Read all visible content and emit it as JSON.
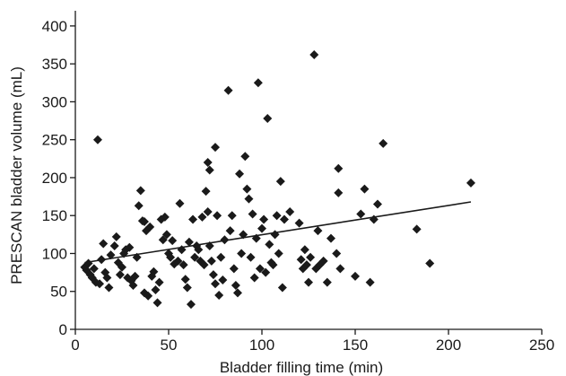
{
  "chart_data": {
    "type": "scatter",
    "title": "",
    "xlabel": "Bladder filling time (min)",
    "ylabel": "PRESCAN bladder volume (mL)",
    "xlim": [
      0,
      250
    ],
    "ylim": [
      0,
      420
    ],
    "xticks": [
      0,
      50,
      100,
      150,
      200,
      250
    ],
    "yticks": [
      0,
      50,
      100,
      150,
      200,
      250,
      300,
      350,
      400
    ],
    "grid": false,
    "marker": "diamond",
    "colors": {
      "marker": "#1a1a1a",
      "axis": "#1a1a1a",
      "trendline": "#1a1a1a"
    },
    "trendline": {
      "x": [
        5,
        212
      ],
      "y": [
        88,
        168
      ]
    },
    "points": [
      [
        5,
        82
      ],
      [
        6,
        78
      ],
      [
        7,
        87
      ],
      [
        8,
        72
      ],
      [
        9,
        68
      ],
      [
        10,
        80
      ],
      [
        11,
        62
      ],
      [
        12,
        250
      ],
      [
        13,
        60
      ],
      [
        14,
        92
      ],
      [
        15,
        113
      ],
      [
        16,
        75
      ],
      [
        17,
        68
      ],
      [
        18,
        55
      ],
      [
        19,
        98
      ],
      [
        21,
        110
      ],
      [
        22,
        122
      ],
      [
        23,
        88
      ],
      [
        24,
        72
      ],
      [
        25,
        82
      ],
      [
        26,
        100
      ],
      [
        27,
        105
      ],
      [
        28,
        68
      ],
      [
        29,
        108
      ],
      [
        30,
        64
      ],
      [
        31,
        58
      ],
      [
        32,
        70
      ],
      [
        33,
        95
      ],
      [
        34,
        163
      ],
      [
        35,
        183
      ],
      [
        36,
        143
      ],
      [
        37,
        142
      ],
      [
        37,
        48
      ],
      [
        38,
        130
      ],
      [
        39,
        44
      ],
      [
        40,
        135
      ],
      [
        41,
        70
      ],
      [
        42,
        76
      ],
      [
        43,
        52
      ],
      [
        44,
        35
      ],
      [
        45,
        62
      ],
      [
        46,
        145
      ],
      [
        47,
        118
      ],
      [
        48,
        148
      ],
      [
        49,
        125
      ],
      [
        50,
        100
      ],
      [
        51,
        95
      ],
      [
        52,
        117
      ],
      [
        53,
        86
      ],
      [
        55,
        90
      ],
      [
        56,
        166
      ],
      [
        57,
        105
      ],
      [
        58,
        85
      ],
      [
        59,
        66
      ],
      [
        60,
        55
      ],
      [
        61,
        115
      ],
      [
        62,
        33
      ],
      [
        63,
        145
      ],
      [
        64,
        95
      ],
      [
        65,
        110
      ],
      [
        66,
        105
      ],
      [
        67,
        90
      ],
      [
        68,
        148
      ],
      [
        69,
        85
      ],
      [
        70,
        182
      ],
      [
        71,
        220
      ],
      [
        71,
        155
      ],
      [
        72,
        210
      ],
      [
        72,
        110
      ],
      [
        73,
        90
      ],
      [
        74,
        72
      ],
      [
        75,
        240
      ],
      [
        75,
        60
      ],
      [
        76,
        150
      ],
      [
        77,
        45
      ],
      [
        78,
        95
      ],
      [
        79,
        65
      ],
      [
        80,
        118
      ],
      [
        82,
        315
      ],
      [
        83,
        130
      ],
      [
        84,
        150
      ],
      [
        85,
        80
      ],
      [
        86,
        58
      ],
      [
        87,
        48
      ],
      [
        88,
        205
      ],
      [
        89,
        100
      ],
      [
        90,
        125
      ],
      [
        91,
        228
      ],
      [
        92,
        185
      ],
      [
        93,
        172
      ],
      [
        94,
        95
      ],
      [
        95,
        152
      ],
      [
        96,
        68
      ],
      [
        97,
        120
      ],
      [
        98,
        325
      ],
      [
        99,
        80
      ],
      [
        100,
        133
      ],
      [
        101,
        145
      ],
      [
        102,
        75
      ],
      [
        103,
        278
      ],
      [
        104,
        112
      ],
      [
        105,
        88
      ],
      [
        106,
        85
      ],
      [
        107,
        125
      ],
      [
        108,
        150
      ],
      [
        109,
        100
      ],
      [
        110,
        195
      ],
      [
        111,
        55
      ],
      [
        112,
        145
      ],
      [
        115,
        155
      ],
      [
        120,
        140
      ],
      [
        121,
        92
      ],
      [
        122,
        80
      ],
      [
        123,
        105
      ],
      [
        124,
        85
      ],
      [
        125,
        62
      ],
      [
        126,
        95
      ],
      [
        128,
        362
      ],
      [
        129,
        80
      ],
      [
        130,
        130
      ],
      [
        131,
        85
      ],
      [
        133,
        90
      ],
      [
        135,
        62
      ],
      [
        137,
        120
      ],
      [
        140,
        100
      ],
      [
        141,
        212
      ],
      [
        141,
        180
      ],
      [
        142,
        80
      ],
      [
        150,
        70
      ],
      [
        153,
        152
      ],
      [
        155,
        185
      ],
      [
        158,
        62
      ],
      [
        160,
        145
      ],
      [
        162,
        165
      ],
      [
        165,
        245
      ],
      [
        183,
        132
      ],
      [
        190,
        87
      ],
      [
        212,
        193
      ]
    ]
  }
}
